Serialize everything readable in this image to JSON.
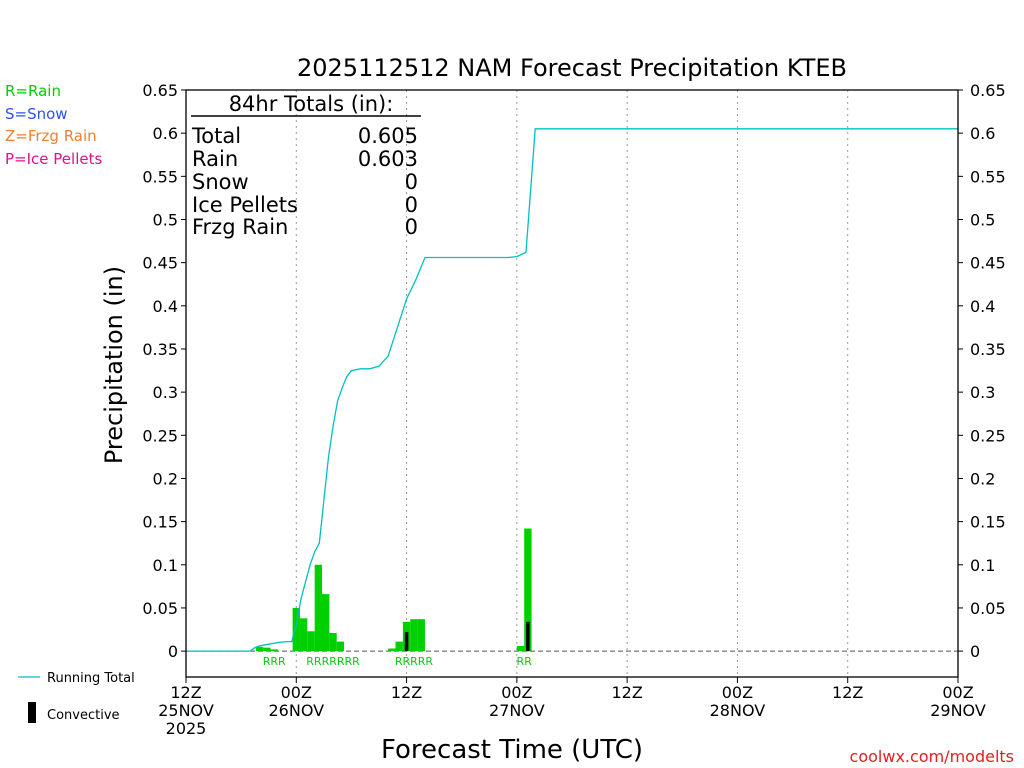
{
  "chart_data": {
    "type": "bar",
    "title": "2025112512 NAM Forecast Precipitation KTEB",
    "xlabel": "Forecast Time (UTC)",
    "ylabel": "Precipitation (in)",
    "ylim": [
      -0.03,
      0.65
    ],
    "yticks": [
      0,
      0.05,
      0.1,
      0.15,
      0.2,
      0.25,
      0.3,
      0.35,
      0.4,
      0.45,
      0.5,
      0.55,
      0.6,
      0.65
    ],
    "yticks_text": [
      "0",
      "0.05",
      "0.1",
      "0.15",
      "0.2",
      "0.25",
      "0.3",
      "0.35",
      "0.4",
      "0.45",
      "0.5",
      "0.55",
      "0.6",
      "0.65"
    ],
    "x_unit": "forecast hour",
    "xlim": [
      0,
      84
    ],
    "xticks": [
      {
        "hour": 0,
        "lines": [
          "12Z",
          "25NOV",
          "2025"
        ]
      },
      {
        "hour": 12,
        "lines": [
          "00Z",
          "26NOV"
        ]
      },
      {
        "hour": 24,
        "lines": [
          "12Z"
        ]
      },
      {
        "hour": 36,
        "lines": [
          "00Z",
          "27NOV"
        ]
      },
      {
        "hour": 48,
        "lines": [
          "12Z"
        ]
      },
      {
        "hour": 60,
        "lines": [
          "00Z",
          "28NOV"
        ]
      },
      {
        "hour": 72,
        "lines": [
          "12Z"
        ]
      },
      {
        "hour": 84,
        "lines": [
          "00Z",
          "29NOV"
        ]
      }
    ],
    "grid": "vertical dotted",
    "series": [
      {
        "name": "Running Total",
        "kind": "line",
        "color": "#00c0c0",
        "points": [
          [
            0,
            0
          ],
          [
            7,
            0
          ],
          [
            7.5,
            0.004
          ],
          [
            8,
            0.006
          ],
          [
            9,
            0.008
          ],
          [
            10,
            0.01
          ],
          [
            11,
            0.011
          ],
          [
            11.5,
            0.011
          ],
          [
            12,
            0.03
          ],
          [
            12.5,
            0.06
          ],
          [
            13,
            0.08
          ],
          [
            13.5,
            0.1
          ],
          [
            14,
            0.115
          ],
          [
            14.5,
            0.125
          ],
          [
            15,
            0.175
          ],
          [
            15.5,
            0.225
          ],
          [
            16,
            0.26
          ],
          [
            16.5,
            0.29
          ],
          [
            17,
            0.305
          ],
          [
            17.5,
            0.318
          ],
          [
            18,
            0.325
          ],
          [
            19,
            0.327
          ],
          [
            20,
            0.327
          ],
          [
            21,
            0.33
          ],
          [
            22,
            0.342
          ],
          [
            23,
            0.375
          ],
          [
            24,
            0.408
          ],
          [
            25,
            0.43
          ],
          [
            26,
            0.456
          ],
          [
            27,
            0.456
          ],
          [
            30,
            0.456
          ],
          [
            33,
            0.456
          ],
          [
            35,
            0.456
          ],
          [
            36,
            0.457
          ],
          [
            37,
            0.462
          ],
          [
            38,
            0.605
          ],
          [
            84,
            0.605
          ]
        ]
      },
      {
        "name": "Rain",
        "kind": "bar",
        "color": "#00d000",
        "bars": [
          [
            7.6,
            0.005
          ],
          [
            8.4,
            0.004
          ],
          [
            9.2,
            0.002
          ],
          [
            11.6,
            0.05
          ],
          [
            12.4,
            0.038
          ],
          [
            13.2,
            0.023
          ],
          [
            14,
            0.1
          ],
          [
            14.8,
            0.066
          ],
          [
            15.6,
            0.021
          ],
          [
            16.4,
            0.011
          ],
          [
            22,
            0.003
          ],
          [
            22.8,
            0.011
          ],
          [
            23.6,
            0.034
          ],
          [
            24.4,
            0.037
          ],
          [
            25.2,
            0.037
          ],
          [
            36,
            0.006
          ],
          [
            36.8,
            0.142
          ]
        ]
      },
      {
        "name": "Convective",
        "kind": "bar",
        "color": "#000000",
        "bars": [
          [
            23.6,
            0.022
          ],
          [
            36.8,
            0.034
          ]
        ]
      }
    ],
    "type_labels": [
      {
        "hour": 9.2,
        "text": "RRR"
      },
      {
        "hour": 15.6,
        "text": "RRRRRRR"
      },
      {
        "hour": 24.4,
        "text": "RRRRR"
      },
      {
        "hour": 36.4,
        "text": "RR"
      }
    ]
  },
  "totals": {
    "heading": "84hr Totals (in):",
    "rows": [
      {
        "label": "Total",
        "value": "0.605"
      },
      {
        "label": "Rain",
        "value": "0.603"
      },
      {
        "label": "Snow",
        "value": "0"
      },
      {
        "label": "Ice Pellets",
        "value": "0"
      },
      {
        "label": "Frzg Rain",
        "value": "0"
      }
    ]
  },
  "type_legend": [
    {
      "text": "R=Rain",
      "color": "#00d000"
    },
    {
      "text": "S=Snow",
      "color": "#3050f0"
    },
    {
      "text": "Z=Frzg Rain",
      "color": "#f08030"
    },
    {
      "text": "P=Ice Pellets",
      "color": "#e01090"
    }
  ],
  "bottom_legend": [
    {
      "text": "Running Total",
      "icon": "cyan-line",
      "color": "#00c0c0"
    },
    {
      "text": "Convective",
      "icon": "black-bar",
      "color": "#000000"
    }
  ],
  "credit": "coolwx.com/modelts"
}
